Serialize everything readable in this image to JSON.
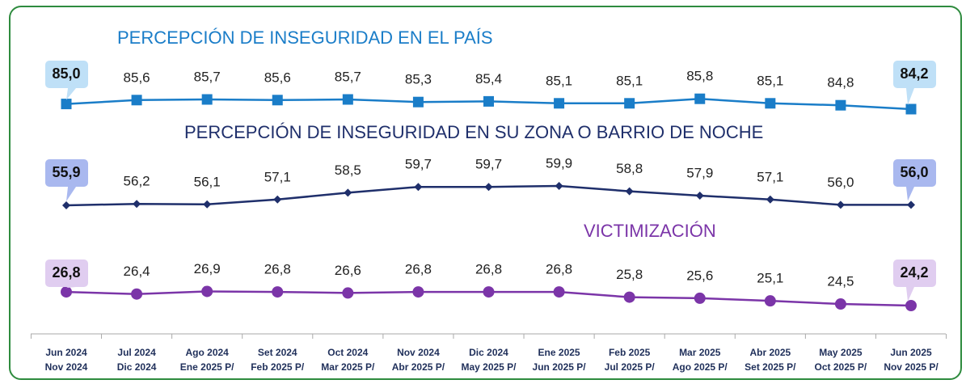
{
  "chart_data": {
    "type": "line",
    "categories": [
      [
        "Jun 2024",
        "Nov 2024"
      ],
      [
        "Jul 2024",
        "Dic 2024"
      ],
      [
        "Ago 2024",
        "Ene 2025 P/"
      ],
      [
        "Set 2024",
        "Feb 2025 P/"
      ],
      [
        "Oct 2024",
        "Mar 2025 P/"
      ],
      [
        "Nov 2024",
        "Abr 2025 P/"
      ],
      [
        "Dic 2024",
        "May 2025 P/"
      ],
      [
        "Ene 2025",
        "Jun 2025 P/"
      ],
      [
        "Feb 2025",
        "Jul 2025 P/"
      ],
      [
        "Mar 2025",
        "Ago 2025 P/"
      ],
      [
        "Abr 2025",
        "Set 2025 P/"
      ],
      [
        "May 2025",
        "Oct 2025 P/"
      ],
      [
        "Jun 2025",
        "Nov 2025 P/"
      ]
    ],
    "series": [
      {
        "name": "PERCEPCIÓN DE INSEGURIDAD EN EL PAÍS",
        "color": "#1a7dc8",
        "marker": "square",
        "values": [
          85.0,
          85.6,
          85.7,
          85.6,
          85.7,
          85.3,
          85.4,
          85.1,
          85.1,
          85.8,
          85.1,
          84.8,
          84.2
        ],
        "value_labels": [
          "85,0",
          "85,6",
          "85,7",
          "85,6",
          "85,7",
          "85,3",
          "85,4",
          "85,1",
          "85,1",
          "85,8",
          "85,1",
          "84,8",
          "84,2"
        ]
      },
      {
        "name": "PERCEPCIÓN DE INSEGURIDAD EN SU ZONA O BARRIO DE NOCHE",
        "color": "#1f2f6b",
        "marker": "diamond",
        "values": [
          55.9,
          56.2,
          56.1,
          57.1,
          58.5,
          59.7,
          59.7,
          59.9,
          58.8,
          57.9,
          57.1,
          56.0,
          56.0
        ],
        "value_labels": [
          "55,9",
          "56,2",
          "56,1",
          "57,1",
          "58,5",
          "59,7",
          "59,7",
          "59,9",
          "58,8",
          "57,9",
          "57,1",
          "56,0",
          "56,0"
        ]
      },
      {
        "name": "VICTIMIZACIÓN",
        "color": "#7b35a8",
        "marker": "circle",
        "values": [
          26.8,
          26.4,
          26.9,
          26.8,
          26.6,
          26.8,
          26.8,
          26.8,
          25.8,
          25.6,
          25.1,
          24.5,
          24.2
        ],
        "value_labels": [
          "26,8",
          "26,4",
          "26,9",
          "26,8",
          "26,6",
          "26,8",
          "26,8",
          "26,8",
          "25,8",
          "25,6",
          "25,1",
          "24,5",
          "24,2"
        ]
      }
    ]
  }
}
